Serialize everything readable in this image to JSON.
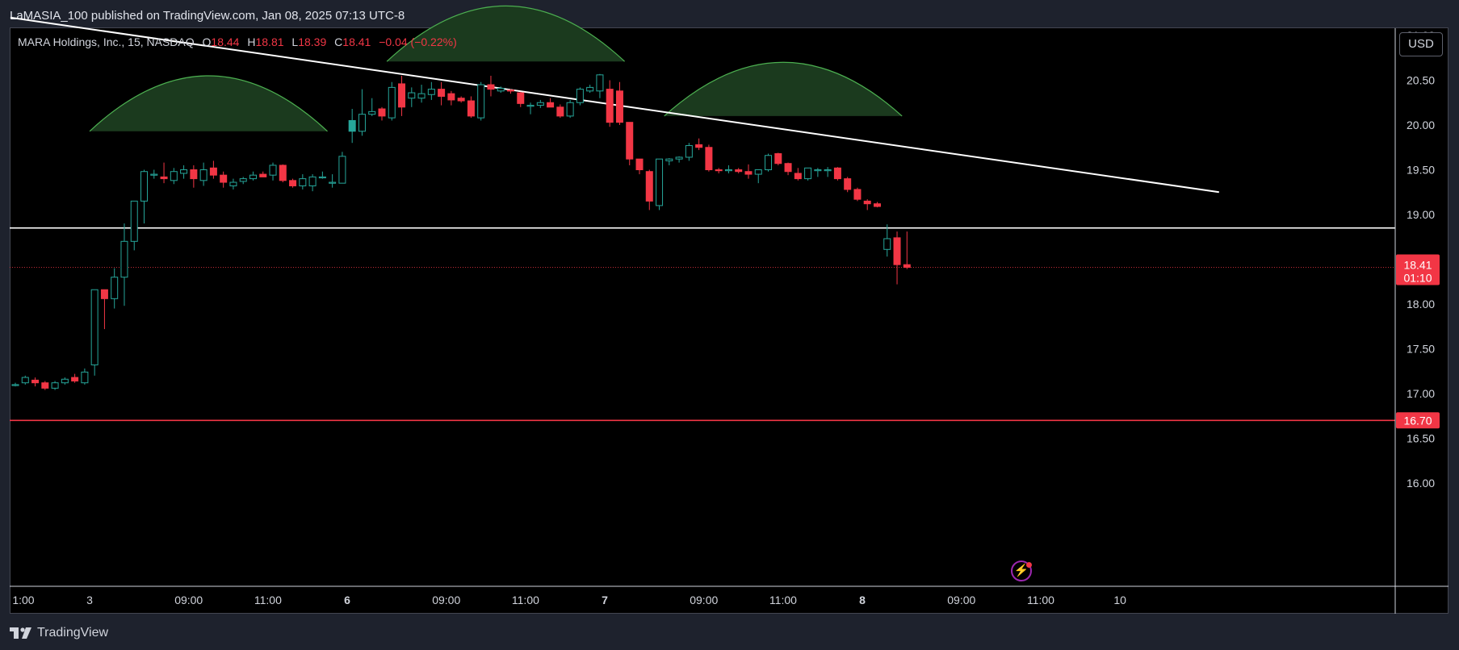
{
  "header": {
    "published_by": "LaMASIA_100 published on TradingView.com, Jan 08, 2025 07:13 UTC-8"
  },
  "legend": {
    "symbol": "MARA Holdings, Inc., 15, NASDAQ",
    "open_label": "O",
    "open": "18.44",
    "high_label": "H",
    "high": "18.81",
    "low_label": "L",
    "low": "18.39",
    "close_label": "C",
    "close": "18.41",
    "change": "−0.04 (−0.22%)"
  },
  "currency_button": "USD",
  "price_scale": {
    "current_price": "18.41",
    "countdown": "01:10",
    "support_label": "16.70"
  },
  "footer": {
    "brand": "TradingView"
  },
  "icons": {
    "alert": "lightning-icon",
    "logo": "tradingview-logo-icon"
  },
  "colors": {
    "up": "#26a69a",
    "down": "#f23645",
    "background": "#000000",
    "arc_stroke": "#4caf50",
    "arc_fill": "#1b3a1e",
    "trendline": "#ffffff",
    "support": "#f23645"
  },
  "chart_data": {
    "type": "candlestick",
    "title": "MARA Holdings, Inc., 15, NASDAQ",
    "y_ticks": [
      "16.00",
      "16.50",
      "17.00",
      "17.50",
      "18.00",
      "18.50",
      "19.00",
      "19.50",
      "20.00",
      "20.50",
      "21.00"
    ],
    "ylim": [
      15.55,
      21.55
    ],
    "x_ticks": [
      {
        "label": "1:00",
        "bar": -0.3,
        "bold": false
      },
      {
        "label": "3",
        "bar": 7.5,
        "bold": false
      },
      {
        "label": "09:00",
        "bar": 17.5,
        "bold": false
      },
      {
        "label": "11:00",
        "bar": 25.5,
        "bold": false
      },
      {
        "label": "6",
        "bar": 33.5,
        "bold": true
      },
      {
        "label": "09:00",
        "bar": 43.5,
        "bold": false
      },
      {
        "label": "11:00",
        "bar": 51.5,
        "bold": false
      },
      {
        "label": "7",
        "bar": 59.5,
        "bold": true
      },
      {
        "label": "09:00",
        "bar": 69.5,
        "bold": false
      },
      {
        "label": "11:00",
        "bar": 77.5,
        "bold": false
      },
      {
        "label": "8",
        "bar": 85.5,
        "bold": true
      },
      {
        "label": "09:00",
        "bar": 95.5,
        "bold": false
      },
      {
        "label": "11:00",
        "bar": 103.5,
        "bold": false
      },
      {
        "label": "10",
        "bar": 111.5,
        "bold": false
      }
    ],
    "candles": [
      [
        17.1,
        17.12,
        17.08,
        17.1
      ],
      [
        17.12,
        17.2,
        17.1,
        17.18
      ],
      [
        17.15,
        17.18,
        17.08,
        17.12
      ],
      [
        17.12,
        17.14,
        17.04,
        17.06
      ],
      [
        17.06,
        17.14,
        17.04,
        17.12
      ],
      [
        17.12,
        17.18,
        17.1,
        17.16
      ],
      [
        17.18,
        17.22,
        17.12,
        17.14
      ],
      [
        17.12,
        17.28,
        17.1,
        17.24
      ],
      [
        17.32,
        18.16,
        17.2,
        18.16
      ],
      [
        18.16,
        18.16,
        17.72,
        18.06
      ],
      [
        18.06,
        18.4,
        17.95,
        18.3
      ],
      [
        18.3,
        18.9,
        17.98,
        18.7
      ],
      [
        18.7,
        19.15,
        18.6,
        19.15
      ],
      [
        19.15,
        19.5,
        18.9,
        19.48
      ],
      [
        19.45,
        19.5,
        19.4,
        19.45
      ],
      [
        19.42,
        19.58,
        19.35,
        19.4
      ],
      [
        19.38,
        19.52,
        19.34,
        19.48
      ],
      [
        19.46,
        19.55,
        19.4,
        19.5
      ],
      [
        19.5,
        19.55,
        19.3,
        19.4
      ],
      [
        19.38,
        19.58,
        19.32,
        19.5
      ],
      [
        19.52,
        19.6,
        19.4,
        19.44
      ],
      [
        19.44,
        19.48,
        19.3,
        19.36
      ],
      [
        19.32,
        19.4,
        19.28,
        19.36
      ],
      [
        19.37,
        19.42,
        19.34,
        19.4
      ],
      [
        19.4,
        19.48,
        19.38,
        19.44
      ],
      [
        19.45,
        19.48,
        19.42,
        19.42
      ],
      [
        19.44,
        19.58,
        19.38,
        19.55
      ],
      [
        19.55,
        19.56,
        19.36,
        19.38
      ],
      [
        19.38,
        19.4,
        19.3,
        19.32
      ],
      [
        19.32,
        19.45,
        19.28,
        19.4
      ],
      [
        19.32,
        19.45,
        19.26,
        19.42
      ],
      [
        19.42,
        19.48,
        19.4,
        19.42
      ],
      [
        19.36,
        19.45,
        19.3,
        19.36
      ],
      [
        19.35,
        19.7,
        19.35,
        19.65
      ],
      [
        19.93,
        20.18,
        19.8,
        20.05
      ],
      [
        19.93,
        20.4,
        19.88,
        20.12
      ],
      [
        20.12,
        20.3,
        20.1,
        20.15
      ],
      [
        20.18,
        20.2,
        20.05,
        20.1
      ],
      [
        20.08,
        20.48,
        20.05,
        20.42
      ],
      [
        20.46,
        20.55,
        20.1,
        20.2
      ],
      [
        20.3,
        20.42,
        20.2,
        20.36
      ],
      [
        20.3,
        20.45,
        20.25,
        20.35
      ],
      [
        20.34,
        20.48,
        20.28,
        20.4
      ],
      [
        20.4,
        20.48,
        20.22,
        20.32
      ],
      [
        20.35,
        20.38,
        20.22,
        20.28
      ],
      [
        20.3,
        20.32,
        20.25,
        20.27
      ],
      [
        20.27,
        20.32,
        20.08,
        20.1
      ],
      [
        20.08,
        20.48,
        20.05,
        20.45
      ],
      [
        20.45,
        20.55,
        20.32,
        20.4
      ],
      [
        20.38,
        20.43,
        20.36,
        20.41
      ],
      [
        20.39,
        20.4,
        20.35,
        20.38
      ],
      [
        20.36,
        20.37,
        20.2,
        20.24
      ],
      [
        20.21,
        20.25,
        20.12,
        20.22
      ],
      [
        20.22,
        20.28,
        20.19,
        20.25
      ],
      [
        20.25,
        20.3,
        20.2,
        20.2
      ],
      [
        20.2,
        20.23,
        20.08,
        20.1
      ],
      [
        20.1,
        20.28,
        20.08,
        20.25
      ],
      [
        20.25,
        20.42,
        20.22,
        20.4
      ],
      [
        20.38,
        20.45,
        20.36,
        20.42
      ],
      [
        20.38,
        20.57,
        20.3,
        20.56
      ],
      [
        20.4,
        20.5,
        19.98,
        20.03
      ],
      [
        20.38,
        20.48,
        20.0,
        20.03
      ],
      [
        20.03,
        20.03,
        19.55,
        19.62
      ],
      [
        19.62,
        19.62,
        19.45,
        19.5
      ],
      [
        19.48,
        19.5,
        19.05,
        19.15
      ],
      [
        19.1,
        19.62,
        19.05,
        19.62
      ],
      [
        19.6,
        19.63,
        19.55,
        19.62
      ],
      [
        19.62,
        19.65,
        19.58,
        19.64
      ],
      [
        19.64,
        19.8,
        19.6,
        19.77
      ],
      [
        19.78,
        19.85,
        19.72,
        19.75
      ],
      [
        19.75,
        19.78,
        19.48,
        19.5
      ],
      [
        19.5,
        19.52,
        19.46,
        19.49
      ],
      [
        19.49,
        19.55,
        19.46,
        19.5
      ],
      [
        19.5,
        19.52,
        19.46,
        19.48
      ],
      [
        19.48,
        19.56,
        19.4,
        19.45
      ],
      [
        19.45,
        19.5,
        19.35,
        19.5
      ],
      [
        19.5,
        19.68,
        19.48,
        19.66
      ],
      [
        19.68,
        19.69,
        19.55,
        19.57
      ],
      [
        19.57,
        19.58,
        19.44,
        19.48
      ],
      [
        19.46,
        19.52,
        19.38,
        19.4
      ],
      [
        19.4,
        19.52,
        19.38,
        19.52
      ],
      [
        19.49,
        19.52,
        19.42,
        19.5
      ],
      [
        19.5,
        19.53,
        19.42,
        19.5
      ],
      [
        19.52,
        19.53,
        19.38,
        19.4
      ],
      [
        19.4,
        19.42,
        19.25,
        19.28
      ],
      [
        19.28,
        19.3,
        19.15,
        19.17
      ],
      [
        19.15,
        19.17,
        19.05,
        19.12
      ],
      [
        19.12,
        19.14,
        19.08,
        19.09
      ],
      [
        18.61,
        18.89,
        18.53,
        18.73
      ],
      [
        18.74,
        18.81,
        18.22,
        18.44
      ],
      [
        18.44,
        18.81,
        18.39,
        18.41
      ]
    ],
    "candle_slots": {
      "first": 0,
      "gap_after": 87,
      "gap_to": 86
    },
    "current_price": 18.41,
    "horizontal_lines": [
      {
        "price": 18.85,
        "color": "#ffffff"
      },
      {
        "price": 16.7,
        "color": "#f23645"
      }
    ],
    "trendline": {
      "from": {
        "bar": -0.5,
        "price": 21.2
      },
      "to": {
        "bar": 121.5,
        "price": 19.25
      }
    },
    "arcs": [
      {
        "from_bar": 7.5,
        "to_bar": 31.5,
        "base": 19.93,
        "peak": 20.55
      },
      {
        "from_bar": 37.5,
        "to_bar": 61.5,
        "base": 20.71,
        "peak": 21.33
      },
      {
        "from_bar": 65.5,
        "to_bar": 89.5,
        "base": 20.1,
        "peak": 20.7
      }
    ]
  }
}
